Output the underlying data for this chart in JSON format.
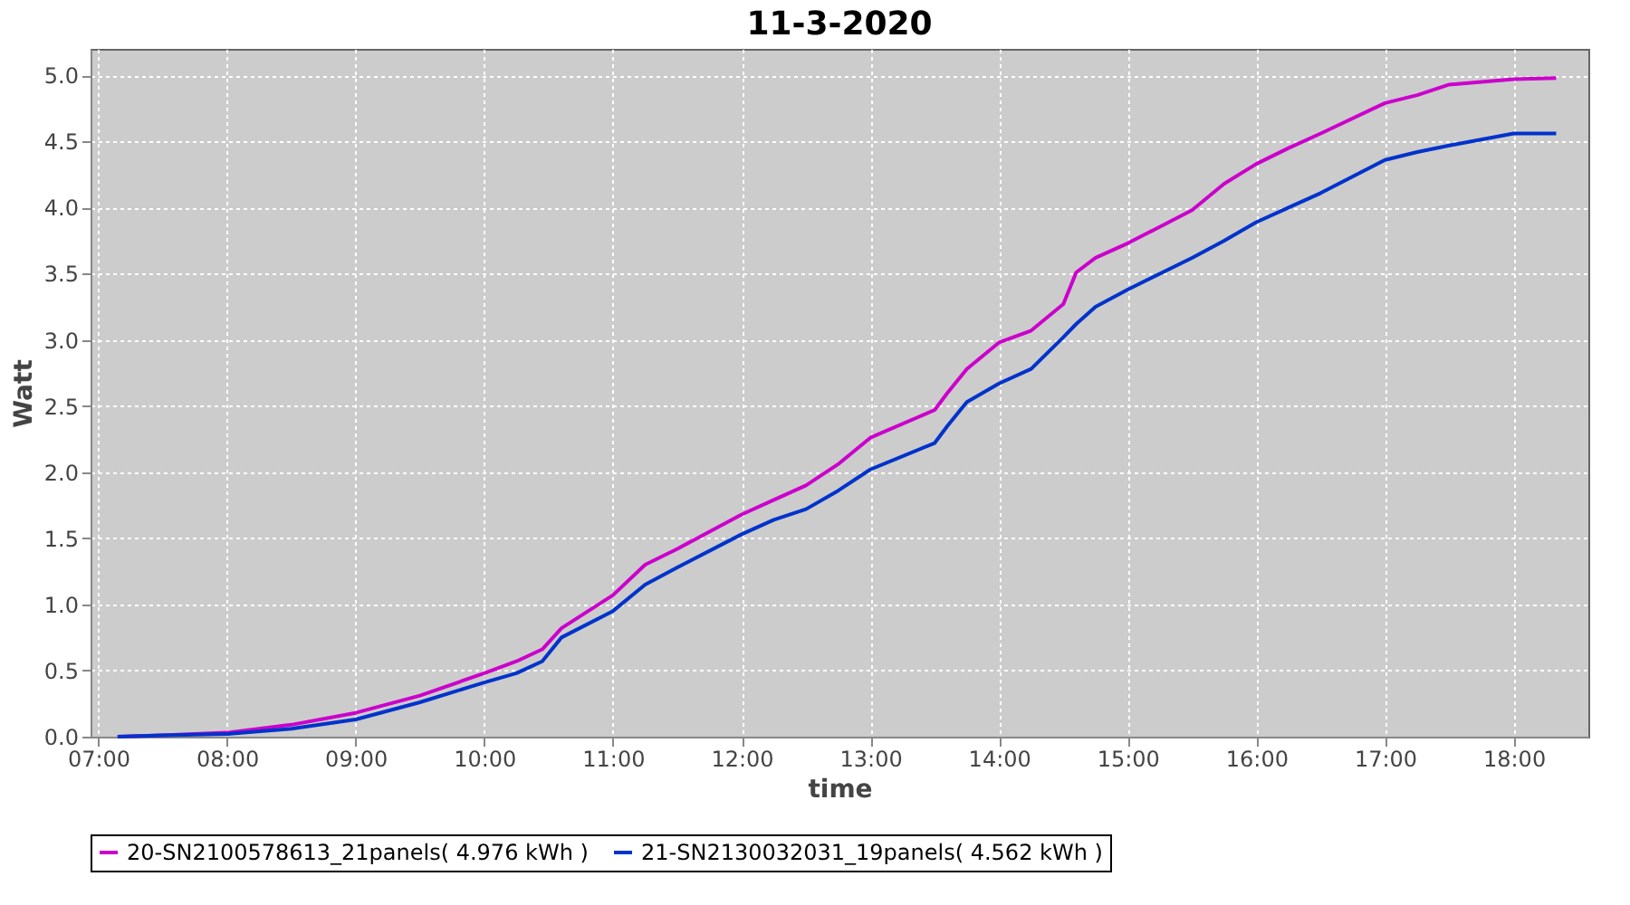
{
  "chart_data": {
    "type": "line",
    "title": "11-3-2020",
    "xlabel": "time",
    "ylabel": "Watt",
    "x": [
      7.15,
      7.5,
      8.0,
      8.5,
      9.0,
      9.5,
      10.0,
      10.25,
      10.45,
      10.6,
      11.0,
      11.25,
      11.5,
      12.0,
      12.25,
      12.5,
      12.75,
      13.0,
      13.5,
      13.6,
      13.75,
      14.0,
      14.25,
      14.5,
      14.6,
      14.75,
      15.0,
      15.5,
      15.75,
      16.0,
      16.25,
      16.5,
      17.0,
      17.25,
      17.5,
      18.0,
      18.33
    ],
    "series": [
      {
        "name": "20-SN2100578613_21panels( 4.976 kWh )",
        "color": "#cc00cc",
        "values": [
          0,
          0.01,
          0.03,
          0.09,
          0.18,
          0.31,
          0.48,
          0.57,
          0.66,
          0.82,
          1.07,
          1.3,
          1.42,
          1.68,
          1.79,
          1.9,
          2.06,
          2.26,
          2.47,
          2.6,
          2.78,
          2.98,
          3.07,
          3.27,
          3.51,
          3.62,
          3.73,
          3.98,
          4.18,
          4.33,
          4.45,
          4.56,
          4.79,
          4.85,
          4.93,
          4.97,
          4.98
        ]
      },
      {
        "name": "21-SN2130032031_19panels( 4.562 kWh )",
        "color": "#0033cc",
        "values": [
          0,
          0.01,
          0.02,
          0.06,
          0.13,
          0.26,
          0.41,
          0.48,
          0.57,
          0.75,
          0.95,
          1.15,
          1.28,
          1.53,
          1.64,
          1.72,
          1.86,
          2.02,
          2.22,
          2.35,
          2.53,
          2.67,
          2.78,
          3.02,
          3.12,
          3.25,
          3.38,
          3.62,
          3.75,
          3.89,
          4.0,
          4.11,
          4.36,
          4.42,
          4.47,
          4.56,
          4.56
        ]
      }
    ],
    "xlim": [
      6.94,
      18.58
    ],
    "xticks": [
      {
        "value": 7,
        "label": "07:00"
      },
      {
        "value": 8,
        "label": "08:00"
      },
      {
        "value": 9,
        "label": "09:00"
      },
      {
        "value": 10,
        "label": "10:00"
      },
      {
        "value": 11,
        "label": "11:00"
      },
      {
        "value": 12,
        "label": "12:00"
      },
      {
        "value": 13,
        "label": "13:00"
      },
      {
        "value": 14,
        "label": "14:00"
      },
      {
        "value": 15,
        "label": "15:00"
      },
      {
        "value": 16,
        "label": "16:00"
      },
      {
        "value": 17,
        "label": "17:00"
      },
      {
        "value": 18,
        "label": "18:00"
      }
    ],
    "ylim": [
      0,
      5.2
    ],
    "yticks": [
      {
        "value": 0,
        "label": "0.0"
      },
      {
        "value": 0.5,
        "label": "0.5"
      },
      {
        "value": 1,
        "label": "1.0"
      },
      {
        "value": 1.5,
        "label": "1.5"
      },
      {
        "value": 2,
        "label": "2.0"
      },
      {
        "value": 2.5,
        "label": "2.5"
      },
      {
        "value": 3,
        "label": "3.0"
      },
      {
        "value": 3.5,
        "label": "3.5"
      },
      {
        "value": 4,
        "label": "4.0"
      },
      {
        "value": 4.5,
        "label": "4.5"
      },
      {
        "value": 5,
        "label": "5.0"
      }
    ],
    "grid": true,
    "legend": "bottom",
    "line_style": "solid"
  }
}
